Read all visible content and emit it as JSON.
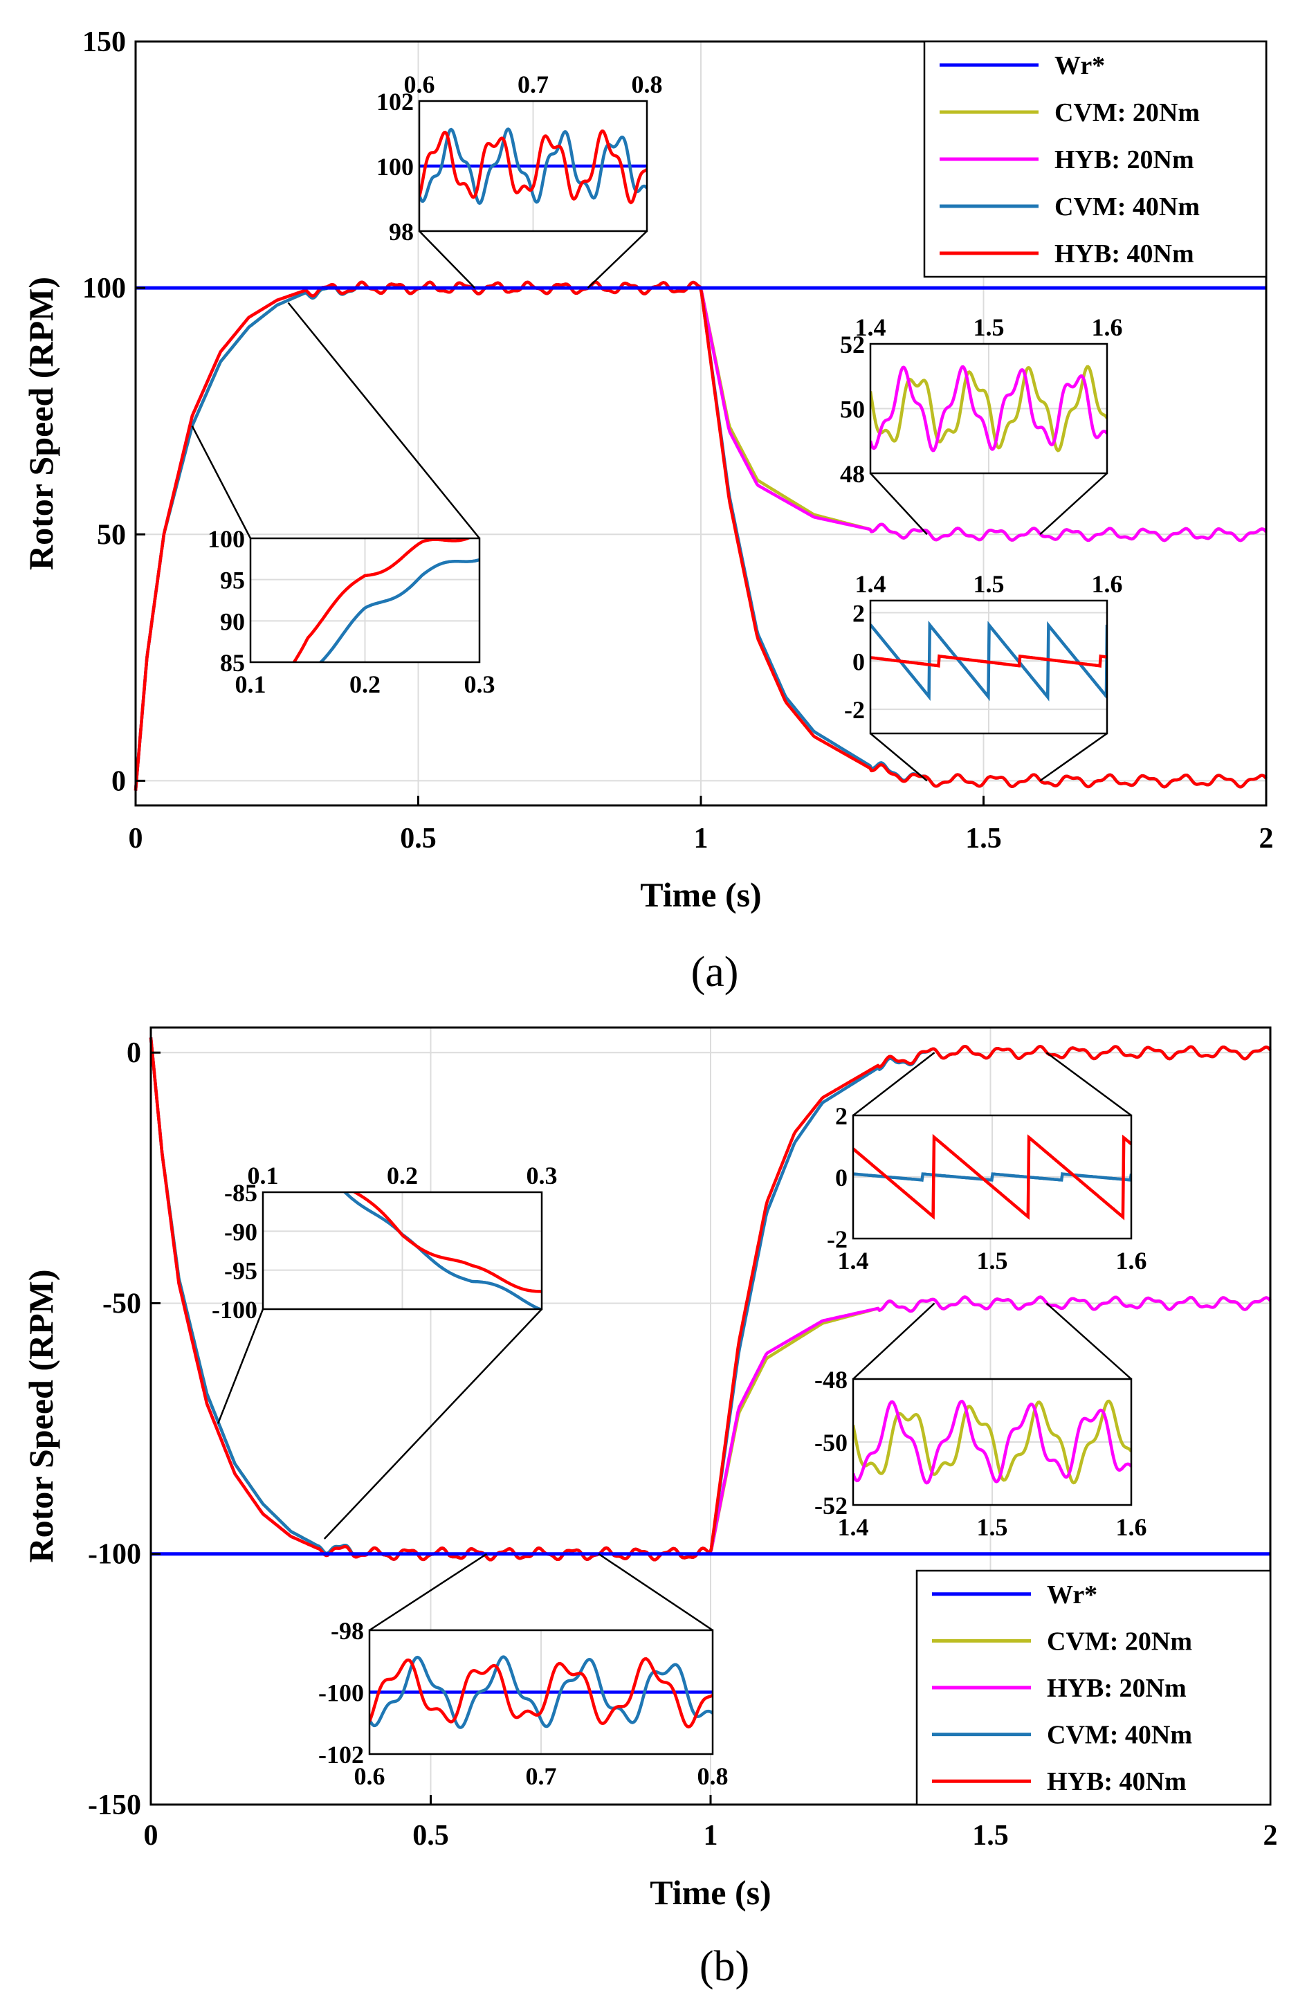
{
  "panels": [
    "(a)",
    "(b)"
  ],
  "chart_data": [
    {
      "type": "line",
      "panel": "(a)",
      "xlabel": "Time (s)",
      "ylabel": "Rotor Speed (RPM)",
      "xlim": [
        0,
        2
      ],
      "ylim": [
        -5,
        150
      ],
      "xticks": [
        "0",
        "0.5",
        "1",
        "1.5",
        "2"
      ],
      "yticks": [
        "0",
        "50",
        "100",
        "150"
      ],
      "grid": true,
      "legend_position": "top-right",
      "colors": {
        "Wr*": "#0000ff",
        "CVM: 20Nm": "#bcbd22",
        "HYB: 20Nm": "#ff00ff",
        "CVM: 40Nm": "#1f77b4",
        "HYB: 40Nm": "#ff0000"
      },
      "series": [
        {
          "name": "Wr*",
          "x": [
            0,
            2
          ],
          "y": [
            100,
            100
          ]
        },
        {
          "name": "CVM: 20Nm",
          "x": [
            0,
            0.02,
            0.05,
            0.1,
            0.15,
            0.2,
            0.25,
            0.3,
            0.4,
            0.6,
            0.8,
            1.0,
            1.05,
            1.1,
            1.2,
            1.3,
            1.4,
            1.5,
            1.6,
            1.8,
            2.0
          ],
          "y": [
            -2,
            25,
            50,
            72,
            85,
            92,
            96.5,
            99,
            100,
            100,
            100,
            100,
            72,
            61,
            54,
            51,
            50,
            50,
            50,
            50,
            50
          ]
        },
        {
          "name": "HYB: 20Nm",
          "x": [
            0,
            0.02,
            0.05,
            0.1,
            0.15,
            0.2,
            0.25,
            0.3,
            0.4,
            0.6,
            0.8,
            1.0,
            1.05,
            1.1,
            1.2,
            1.3,
            1.4,
            1.5,
            1.6,
            1.8,
            2.0
          ],
          "y": [
            -2,
            25,
            50,
            74,
            87,
            94,
            97.5,
            99.5,
            100,
            100,
            100,
            100,
            71,
            60,
            53.5,
            51,
            50,
            50,
            50,
            50,
            50
          ]
        },
        {
          "name": "CVM: 40Nm",
          "x": [
            0,
            0.02,
            0.05,
            0.1,
            0.15,
            0.2,
            0.25,
            0.3,
            0.4,
            0.6,
            0.8,
            1.0,
            1.05,
            1.1,
            1.15,
            1.2,
            1.3,
            1.4,
            1.5,
            1.6,
            1.8,
            2.0
          ],
          "y": [
            -2,
            25,
            50,
            72,
            85,
            92,
            96.5,
            99,
            100,
            100,
            100,
            100,
            58,
            30,
            17,
            10,
            3,
            0,
            0,
            0,
            0,
            0
          ]
        },
        {
          "name": "HYB: 40Nm",
          "x": [
            0,
            0.02,
            0.05,
            0.1,
            0.15,
            0.2,
            0.25,
            0.3,
            0.4,
            0.6,
            0.8,
            1.0,
            1.05,
            1.1,
            1.15,
            1.2,
            1.3,
            1.4,
            1.5,
            1.6,
            1.8,
            2.0
          ],
          "y": [
            -2,
            25,
            50,
            74,
            87,
            94,
            97.5,
            99.5,
            100,
            100,
            100,
            100,
            57,
            29,
            16,
            9,
            2.5,
            0,
            0,
            0,
            0,
            0
          ]
        }
      ],
      "insets": [
        {
          "xlim": [
            0.6,
            0.8
          ],
          "ylim": [
            98,
            102
          ],
          "xticks": [
            "0.6",
            "0.7",
            "0.8"
          ],
          "yticks": [
            "98",
            "100",
            "102"
          ],
          "series": [
            "Wr*",
            "CVM: 40Nm",
            "HYB: 40Nm"
          ],
          "oscillation": "about 100 RPM, amplitude about 1 RPM"
        },
        {
          "xlim": [
            0.1,
            0.3
          ],
          "ylim": [
            85,
            100
          ],
          "xticks": [
            "0.1",
            "0.2",
            "0.3"
          ],
          "yticks": [
            "85",
            "90",
            "95",
            "100"
          ],
          "series": [
            "CVM: 40Nm",
            "HYB: 40Nm"
          ]
        },
        {
          "xlim": [
            1.4,
            1.6
          ],
          "ylim": [
            48,
            52
          ],
          "xticks": [
            "1.4",
            "1.5",
            "1.6"
          ],
          "yticks": [
            "48",
            "50",
            "52"
          ],
          "series": [
            "CVM: 20Nm",
            "HYB: 20Nm"
          ],
          "oscillation": "about 50 RPM, amplitude about 1.3 RPM"
        },
        {
          "xlim": [
            1.4,
            1.6
          ],
          "ylim": [
            -3,
            2.5
          ],
          "xticks": [
            "1.4",
            "1.5",
            "1.6"
          ],
          "yticks": [
            "-2",
            "0",
            "2"
          ],
          "series": [
            "CVM: 40Nm",
            "HYB: 40Nm"
          ],
          "oscillation": "about 0 RPM, sawtooth amplitude about 1.5 RPM"
        }
      ]
    },
    {
      "type": "line",
      "panel": "(b)",
      "xlabel": "Time (s)",
      "ylabel": "Rotor Speed (RPM)",
      "xlim": [
        0,
        2
      ],
      "ylim": [
        -150,
        5
      ],
      "xticks": [
        "0",
        "0.5",
        "1",
        "1.5",
        "2"
      ],
      "yticks": [
        "-150",
        "-100",
        "-50",
        "0"
      ],
      "grid": true,
      "legend_position": "bottom-right",
      "colors": {
        "Wr*": "#0000ff",
        "CVM: 20Nm": "#bcbd22",
        "HYB: 20Nm": "#ff00ff",
        "CVM: 40Nm": "#1f77b4",
        "HYB: 40Nm": "#ff0000"
      },
      "series": [
        {
          "name": "Wr*",
          "x": [
            0,
            2
          ],
          "y": [
            -100,
            -100
          ]
        },
        {
          "name": "CVM: 20Nm",
          "x": [
            0,
            0.02,
            0.05,
            0.1,
            0.15,
            0.2,
            0.25,
            0.3,
            0.4,
            0.6,
            0.8,
            1.0,
            1.05,
            1.1,
            1.2,
            1.3,
            1.4,
            1.5,
            1.6,
            1.8,
            2.0
          ],
          "y": [
            3,
            -20,
            -45,
            -68,
            -82,
            -90,
            -95.5,
            -98.5,
            -100,
            -100,
            -100,
            -100,
            -72,
            -61,
            -54,
            -51,
            -50,
            -50,
            -50,
            -50,
            -50
          ]
        },
        {
          "name": "HYB: 20Nm",
          "x": [
            0,
            0.02,
            0.05,
            0.1,
            0.15,
            0.2,
            0.25,
            0.3,
            0.4,
            0.6,
            0.8,
            1.0,
            1.05,
            1.1,
            1.2,
            1.3,
            1.4,
            1.5,
            1.6,
            1.8,
            2.0
          ],
          "y": [
            3,
            -20,
            -46,
            -70,
            -84,
            -92,
            -96.5,
            -99,
            -100,
            -100,
            -100,
            -100,
            -71,
            -60,
            -53.5,
            -51,
            -50,
            -50,
            -50,
            -50,
            -50
          ]
        },
        {
          "name": "CVM: 40Nm",
          "x": [
            0,
            0.02,
            0.05,
            0.1,
            0.15,
            0.2,
            0.25,
            0.3,
            0.4,
            0.6,
            0.8,
            1.0,
            1.05,
            1.1,
            1.15,
            1.2,
            1.3,
            1.4,
            1.5,
            1.6,
            1.8,
            2.0
          ],
          "y": [
            3,
            -20,
            -45,
            -68,
            -82,
            -90,
            -95.5,
            -98.5,
            -100,
            -100,
            -100,
            -100,
            -60,
            -32,
            -18,
            -10,
            -3,
            0,
            0,
            0,
            0,
            0
          ]
        },
        {
          "name": "HYB: 40Nm",
          "x": [
            0,
            0.02,
            0.05,
            0.1,
            0.15,
            0.2,
            0.25,
            0.3,
            0.4,
            0.6,
            0.8,
            1.0,
            1.05,
            1.1,
            1.15,
            1.2,
            1.3,
            1.4,
            1.5,
            1.6,
            1.8,
            2.0
          ],
          "y": [
            3,
            -20,
            -46,
            -70,
            -84,
            -92,
            -96.5,
            -99,
            -100,
            -100,
            -100,
            -100,
            -58,
            -30,
            -16,
            -9,
            -2.5,
            0,
            0,
            0,
            0,
            0
          ]
        }
      ],
      "insets": [
        {
          "xlim": [
            0.1,
            0.3
          ],
          "ylim": [
            -100,
            -85
          ],
          "xticks": [
            "0.1",
            "0.2",
            "0.3"
          ],
          "yticks": [
            "-85",
            "-90",
            "-95",
            "-100"
          ],
          "series": [
            "CVM: 40Nm",
            "HYB: 40Nm"
          ]
        },
        {
          "xlim": [
            1.4,
            1.6
          ],
          "ylim": [
            -2,
            2
          ],
          "xticks": [
            "1.4",
            "1.5",
            "1.6"
          ],
          "yticks": [
            "-2",
            "0",
            "2"
          ],
          "series": [
            "CVM: 40Nm",
            "HYB: 40Nm"
          ],
          "oscillation": "about 0 RPM, sawtooth amplitude about 1.3 RPM"
        },
        {
          "xlim": [
            1.4,
            1.6
          ],
          "ylim": [
            -52,
            -48
          ],
          "xticks": [
            "1.4",
            "1.5",
            "1.6"
          ],
          "yticks": [
            "-48",
            "-50",
            "-52"
          ],
          "series": [
            "CVM: 20Nm",
            "HYB: 20Nm"
          ],
          "oscillation": "about -50 RPM, amplitude about 1.2 RPM"
        },
        {
          "xlim": [
            0.6,
            0.8
          ],
          "ylim": [
            -102,
            -98
          ],
          "xticks": [
            "0.6",
            "0.7",
            "0.8"
          ],
          "yticks": [
            "-98",
            "-100",
            "-102"
          ],
          "series": [
            "Wr*",
            "CVM: 40Nm",
            "HYB: 40Nm"
          ],
          "oscillation": "about -100 RPM, amplitude about 1.1 RPM"
        }
      ]
    }
  ]
}
